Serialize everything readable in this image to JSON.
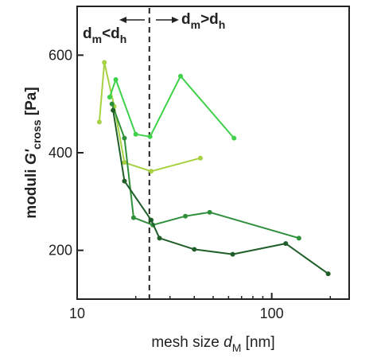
{
  "chart_data": {
    "type": "line",
    "x_scale": "log",
    "xlim": [
      10,
      250
    ],
    "ylim": [
      100,
      700
    ],
    "grid": false,
    "x_ticks": [
      10,
      100
    ],
    "x_tick_labels": [
      "10",
      "100"
    ],
    "y_ticks": [
      200,
      400,
      600
    ],
    "y_tick_labels": [
      "200",
      "400",
      "600"
    ],
    "xlabel": {
      "text": "mesh size ",
      "var": "d",
      "sub": "M",
      "unit": " [nm]"
    },
    "ylabel": {
      "text": "moduli ",
      "var": "G'",
      "sub": "cross",
      "unit": " [Pa]"
    },
    "threshold_x": 23.5,
    "annotations": {
      "left": {
        "a": "d",
        "a_sub": "m",
        "op": "<",
        "b": "d",
        "b_sub": "h"
      },
      "right": {
        "a": "d",
        "a_sub": "m",
        "op": ">",
        "b": "d",
        "b_sub": "h"
      }
    },
    "series": [
      {
        "color": "#a6d142",
        "points": [
          [
            13.0,
            463
          ],
          [
            13.8,
            585
          ],
          [
            15.5,
            495
          ],
          [
            17.5,
            380
          ],
          [
            24.0,
            362
          ],
          [
            43.0,
            389
          ]
        ]
      },
      {
        "color": "#3fd14a",
        "points": [
          [
            14.7,
            514
          ],
          [
            15.8,
            550
          ],
          [
            20.0,
            438
          ],
          [
            23.7,
            433
          ],
          [
            34.0,
            557
          ],
          [
            64.0,
            430
          ]
        ]
      },
      {
        "color": "#2f8f3a",
        "points": [
          [
            15.1,
            500
          ],
          [
            17.5,
            430
          ],
          [
            19.5,
            267
          ],
          [
            24.5,
            252
          ],
          [
            36.0,
            270
          ],
          [
            48.0,
            278
          ],
          [
            138.0,
            225
          ]
        ]
      },
      {
        "color": "#1f5e28",
        "points": [
          [
            15.3,
            487
          ],
          [
            17.5,
            342
          ],
          [
            24.0,
            262
          ],
          [
            26.5,
            225
          ],
          [
            40.0,
            202
          ],
          [
            63.0,
            192
          ],
          [
            118.0,
            214
          ],
          [
            195.0,
            152
          ]
        ]
      }
    ]
  }
}
